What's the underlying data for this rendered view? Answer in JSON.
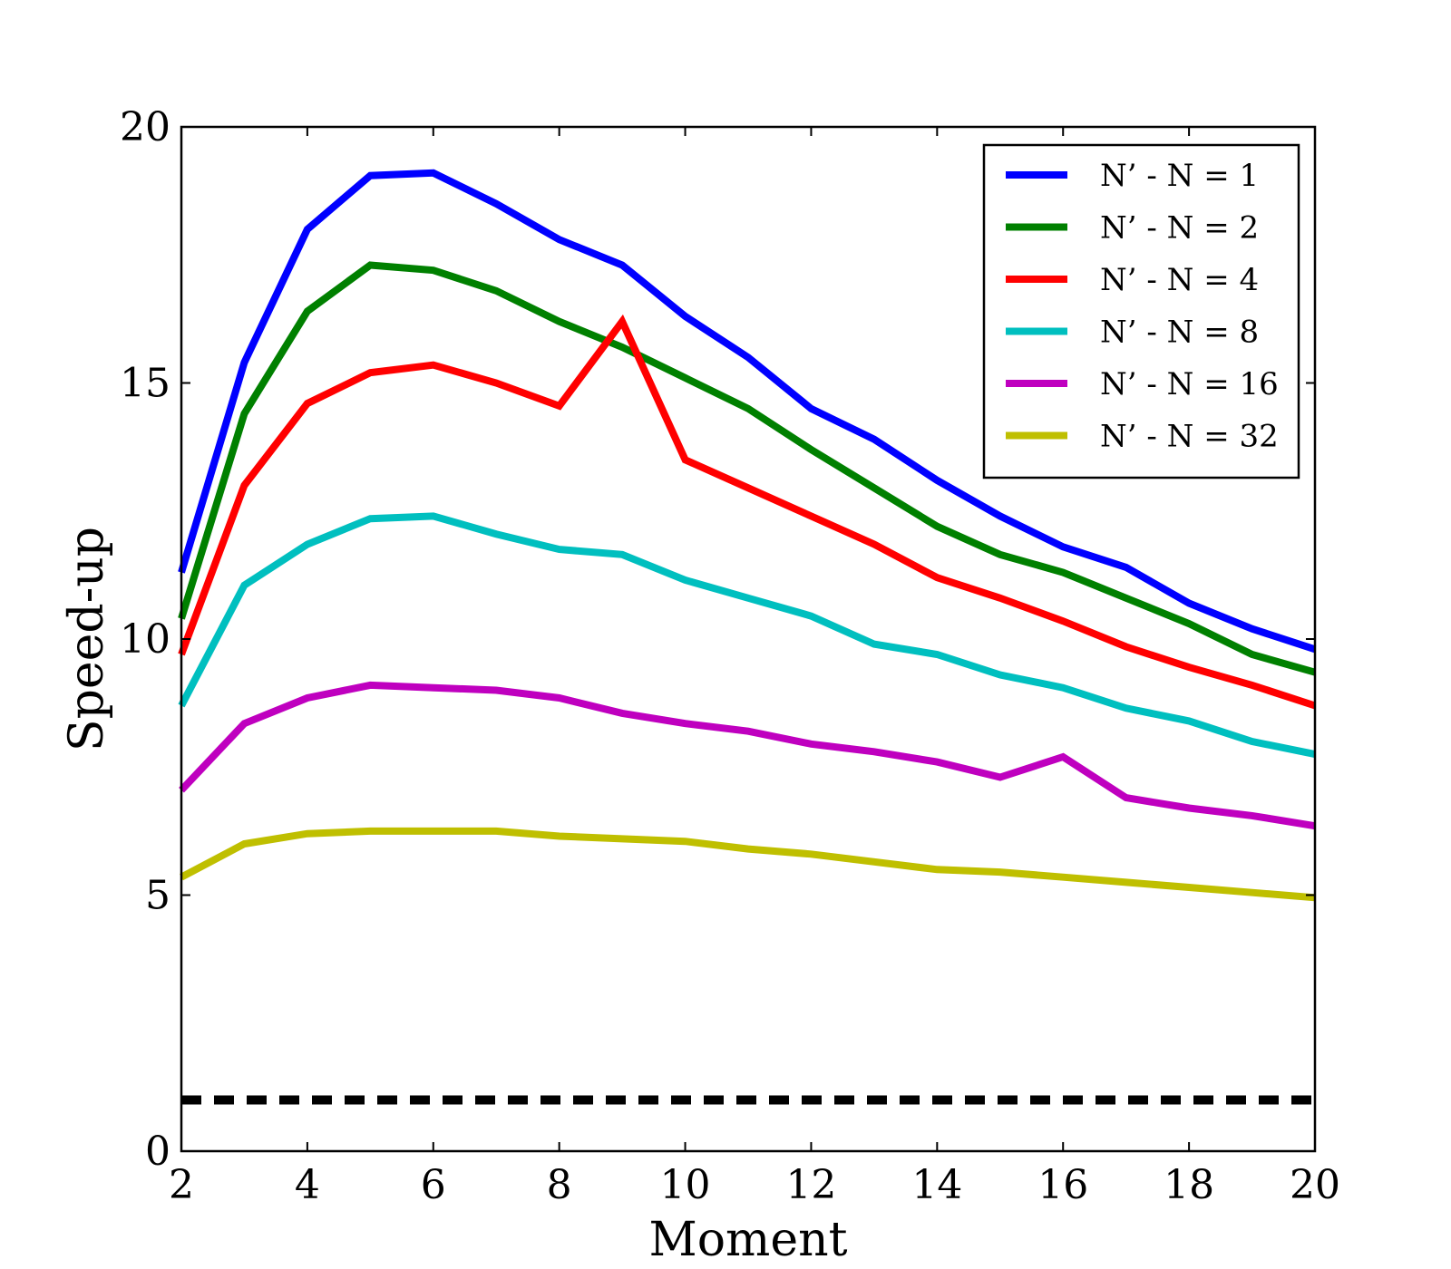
{
  "chart_data": {
    "type": "line",
    "title": "",
    "xlabel": "Moment",
    "ylabel": "Speed-up",
    "xlim": [
      2,
      20
    ],
    "ylim": [
      0,
      20
    ],
    "xticks": [
      2,
      4,
      6,
      8,
      10,
      12,
      14,
      16,
      18,
      20
    ],
    "yticks": [
      0,
      5,
      10,
      15,
      20
    ],
    "x": [
      2,
      3,
      4,
      5,
      6,
      7,
      8,
      9,
      10,
      11,
      12,
      13,
      14,
      15,
      16,
      17,
      18,
      19,
      20
    ],
    "legend_position": "top-right",
    "series": [
      {
        "name": "N’ - N = 1",
        "color": "#0000ff",
        "values": [
          11.3,
          15.4,
          18.0,
          19.05,
          19.1,
          18.5,
          17.8,
          17.3,
          16.3,
          15.5,
          14.5,
          13.9,
          13.1,
          12.4,
          11.8,
          11.4,
          10.7,
          10.2,
          9.8
        ]
      },
      {
        "name": "N’ - N = 2",
        "color": "#008000",
        "values": [
          10.4,
          14.4,
          16.4,
          17.3,
          17.2,
          16.8,
          16.2,
          15.7,
          15.1,
          14.5,
          13.7,
          12.95,
          12.2,
          11.65,
          11.3,
          10.8,
          10.3,
          9.7,
          9.35
        ]
      },
      {
        "name": "N’ - N = 4",
        "color": "#ff0000",
        "values": [
          9.7,
          13.0,
          14.6,
          15.2,
          15.35,
          15.0,
          14.55,
          16.2,
          13.5,
          12.95,
          12.4,
          11.85,
          11.2,
          10.8,
          10.35,
          9.85,
          9.45,
          9.1,
          8.7
        ]
      },
      {
        "name": "N’ - N = 8",
        "color": "#00bfbf",
        "values": [
          8.7,
          11.05,
          11.85,
          12.35,
          12.4,
          12.05,
          11.75,
          11.65,
          11.15,
          10.8,
          10.45,
          9.9,
          9.7,
          9.3,
          9.05,
          8.65,
          8.4,
          8.0,
          7.75
        ]
      },
      {
        "name": "N’ - N = 16",
        "color": "#bf00bf",
        "values": [
          7.05,
          8.35,
          8.85,
          9.1,
          9.05,
          9.0,
          8.85,
          8.55,
          8.35,
          8.2,
          7.95,
          7.8,
          7.6,
          7.3,
          7.7,
          6.9,
          6.7,
          6.55,
          6.35
        ]
      },
      {
        "name": "N’ - N = 32",
        "color": "#bfbf00",
        "values": [
          5.35,
          6.0,
          6.2,
          6.25,
          6.25,
          6.25,
          6.15,
          6.1,
          6.05,
          5.9,
          5.8,
          5.65,
          5.5,
          5.45,
          5.35,
          5.25,
          5.15,
          5.05,
          4.95
        ]
      }
    ],
    "reference_line": {
      "y": 1,
      "style": "dashed",
      "color": "#000000"
    }
  }
}
